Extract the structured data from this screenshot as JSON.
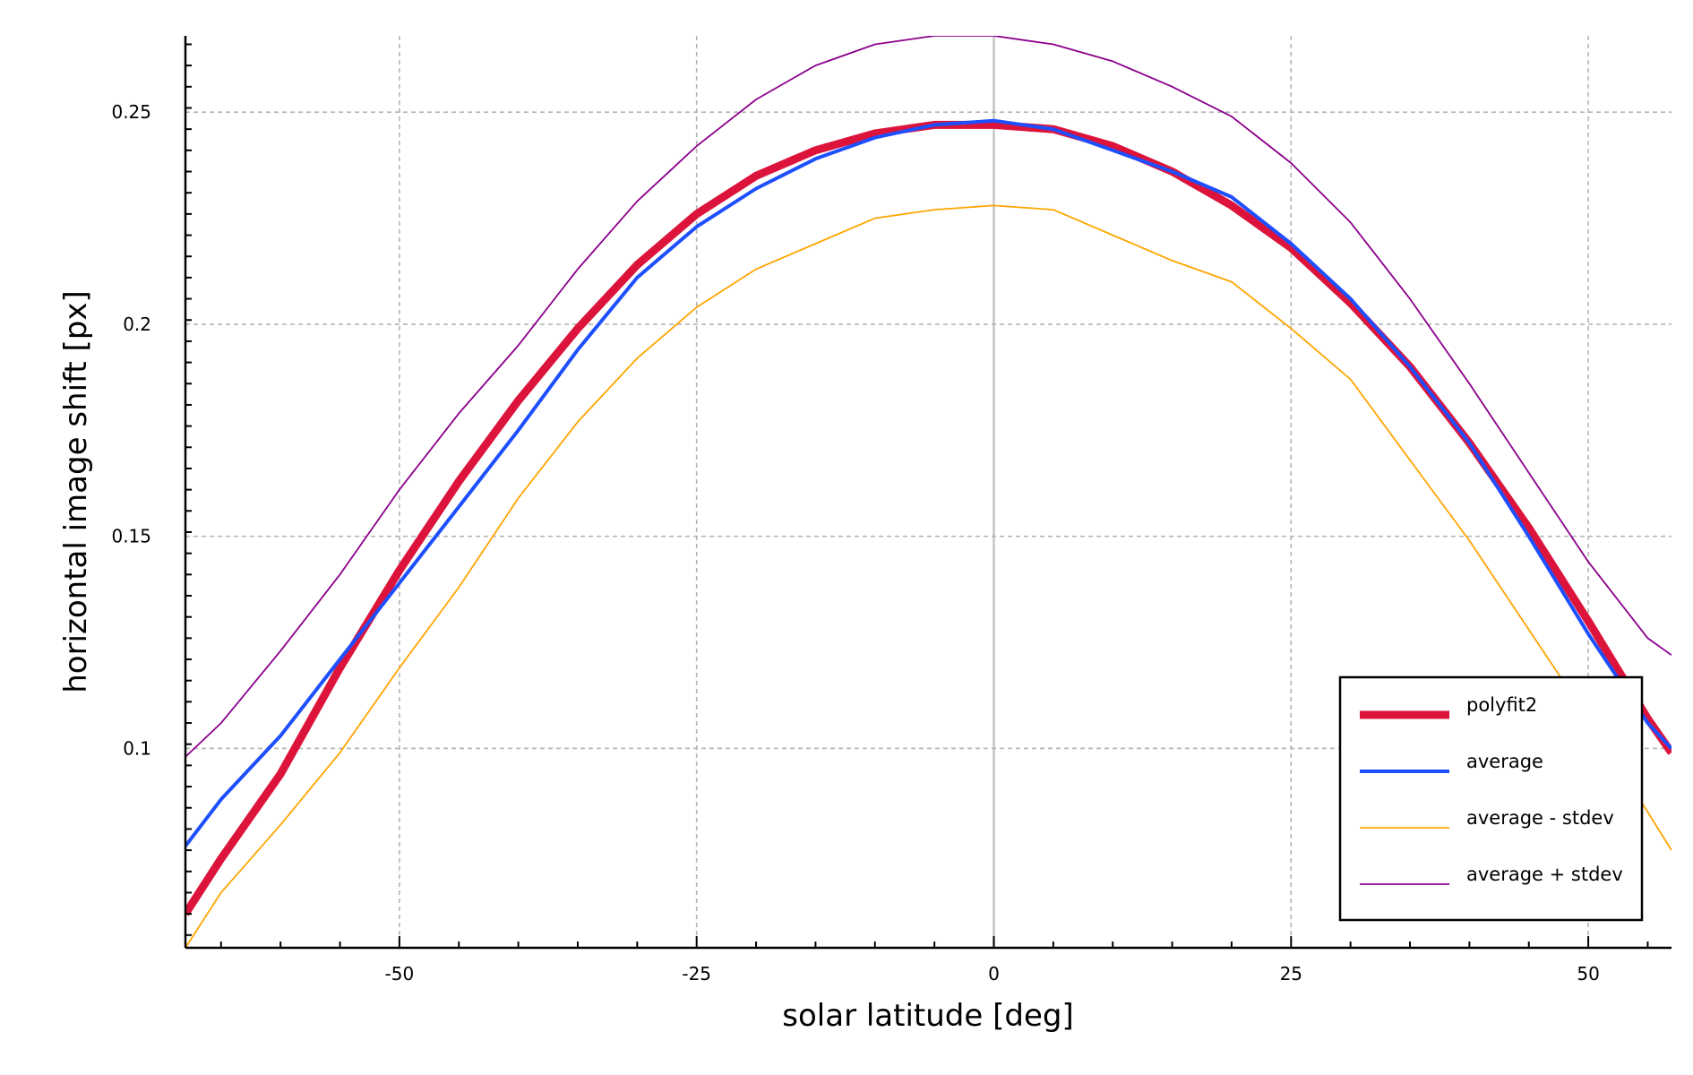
{
  "chart_data": {
    "type": "line",
    "xlabel": "solar latitude [deg]",
    "ylabel": "horizontal image shift [px]",
    "xlim": [
      -68,
      57
    ],
    "ylim": [
      0.053,
      0.268
    ],
    "x_ticks": [
      -50,
      -25,
      0,
      25,
      50
    ],
    "x_tick_labels": [
      "-50",
      "-25",
      "0",
      "25",
      "50"
    ],
    "y_ticks": [
      0.1,
      0.15,
      0.2,
      0.25
    ],
    "y_tick_labels": [
      "0.1",
      "0.15",
      "0.2",
      "0.25"
    ],
    "grid": true,
    "legend_position": "bottom-right",
    "x": [
      -68,
      -65,
      -60,
      -55,
      -50,
      -45,
      -40,
      -35,
      -30,
      -25,
      -20,
      -15,
      -10,
      -5,
      0,
      5,
      10,
      15,
      20,
      25,
      30,
      35,
      40,
      45,
      50,
      55,
      57
    ],
    "series": [
      {
        "name": "polyfit2",
        "color": "#dc143c",
        "values": [
          0.061,
          0.074,
          0.094,
          0.119,
          0.142,
          0.163,
          0.182,
          0.199,
          0.214,
          0.226,
          0.235,
          0.241,
          0.245,
          0.247,
          0.247,
          0.246,
          0.242,
          0.236,
          0.228,
          0.218,
          0.205,
          0.19,
          0.172,
          0.152,
          0.13,
          0.107,
          0.099
        ]
      },
      {
        "name": "average",
        "color": "#1e4fff",
        "values": [
          0.077,
          0.088,
          0.103,
          0.121,
          0.139,
          0.157,
          0.175,
          0.194,
          0.211,
          0.223,
          0.232,
          0.239,
          0.244,
          0.247,
          0.248,
          0.246,
          0.241,
          0.236,
          0.23,
          0.219,
          0.206,
          0.19,
          0.172,
          0.15,
          0.127,
          0.106,
          0.1
        ]
      },
      {
        "name": "average - stdev",
        "color": "#ffa500",
        "values": [
          0.053,
          0.066,
          0.082,
          0.099,
          0.119,
          0.138,
          0.159,
          0.177,
          0.192,
          0.204,
          0.213,
          0.219,
          0.225,
          0.227,
          0.228,
          0.227,
          0.221,
          0.215,
          0.21,
          0.199,
          0.187,
          0.168,
          0.149,
          0.128,
          0.107,
          0.085,
          0.076
        ]
      },
      {
        "name": "average + stdev",
        "color": "#8b008b",
        "values": [
          0.098,
          0.106,
          0.123,
          0.141,
          0.161,
          0.179,
          0.195,
          0.213,
          0.229,
          0.242,
          0.253,
          0.261,
          0.266,
          0.268,
          0.268,
          0.266,
          0.262,
          0.256,
          0.249,
          0.238,
          0.224,
          0.206,
          0.186,
          0.165,
          0.144,
          0.126,
          0.122
        ]
      }
    ],
    "legend": {
      "entries": [
        {
          "label": "polyfit2",
          "color": "#dc143c",
          "line_width": 9
        },
        {
          "label": "average",
          "color": "#1e4fff",
          "line_width": 4
        },
        {
          "label": "average - stdev",
          "color": "#ffa500",
          "line_width": 1.8
        },
        {
          "label": "average + stdev",
          "color": "#8b008b",
          "line_width": 1.8
        }
      ]
    }
  }
}
